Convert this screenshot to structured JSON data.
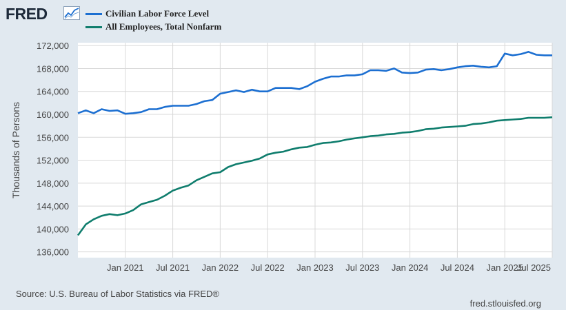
{
  "header": {
    "logo_text": "FRED"
  },
  "colors": {
    "background": "#e1e9f0",
    "plot_background": "#ffffff",
    "series_1": "#1c6fd1",
    "series_2": "#0f7d6d",
    "grid": "#d8d8d8"
  },
  "chart_data": {
    "type": "line",
    "title": "",
    "xlabel": "",
    "ylabel": "Thousands of Persons",
    "x_ticks": [
      "Jan 2021",
      "Jul 2021",
      "Jan 2022",
      "Jul 2022",
      "Jan 2023",
      "Jul 2023",
      "Jan 2024",
      "Jul 2024",
      "Jan 2025",
      "Jul 2025"
    ],
    "y_ticks": [
      "136,000",
      "140,000",
      "144,000",
      "148,000",
      "152,000",
      "156,000",
      "160,000",
      "164,000",
      "168,000",
      "172,000"
    ],
    "ylim": [
      135000,
      172500
    ],
    "x_range": [
      "2020-07",
      "2025-07"
    ],
    "legend_position": "top-left",
    "series": [
      {
        "name": "Civilian Labor Force Level",
        "color": "#1c6fd1",
        "values": [
          160200,
          160700,
          160200,
          160900,
          160600,
          160700,
          160100,
          160200,
          160400,
          160900,
          160900,
          161300,
          161500,
          161500,
          161500,
          161800,
          162300,
          162500,
          163600,
          163900,
          164200,
          163900,
          164300,
          164000,
          164000,
          164600,
          164600,
          164600,
          164400,
          164900,
          165700,
          166200,
          166600,
          166600,
          166800,
          166800,
          167000,
          167700,
          167700,
          167600,
          168000,
          167300,
          167200,
          167300,
          167800,
          167900,
          167700,
          167900,
          168200,
          168400,
          168500,
          168300,
          168200,
          168400,
          170600,
          170300,
          170500,
          170900,
          170400,
          170300,
          170300
        ]
      },
      {
        "name": "All Employees, Total Nonfarm",
        "color": "#0f7d6d",
        "values": [
          138900,
          140800,
          141700,
          142300,
          142600,
          142400,
          142700,
          143300,
          144300,
          144700,
          145100,
          145800,
          146700,
          147200,
          147600,
          148500,
          149100,
          149700,
          149900,
          150800,
          151300,
          151600,
          151900,
          152300,
          153000,
          153300,
          153500,
          153900,
          154200,
          154300,
          154700,
          155000,
          155100,
          155300,
          155600,
          155800,
          156000,
          156200,
          156300,
          156500,
          156600,
          156800,
          156900,
          157100,
          157400,
          157500,
          157700,
          157800,
          157900,
          158000,
          158300,
          158400,
          158600,
          158900,
          159000,
          159100,
          159200,
          159400,
          159400,
          159400,
          159500
        ]
      }
    ]
  },
  "footer": {
    "source": "Source: U.S. Bureau of Labor Statistics via FRED®",
    "site": "fred.stlouisfed.org"
  }
}
